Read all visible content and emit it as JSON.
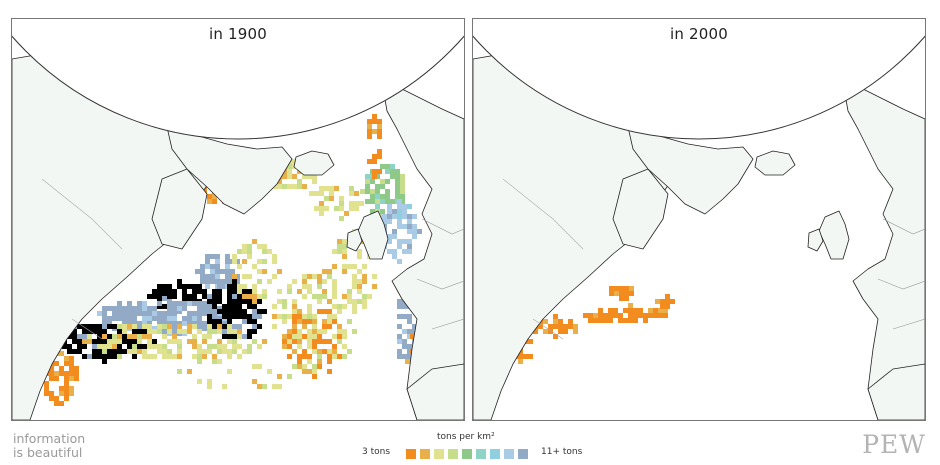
{
  "panels": [
    {
      "title": "in 1900"
    },
    {
      "title": "in 2000"
    }
  ],
  "colors": {
    "land": "#f3f7f3",
    "coast": "#222222",
    "ocean": "#ffffff",
    "arctic": "#ffffff"
  },
  "legend": {
    "title": "tons per km²",
    "min_label": "3 tons",
    "max_label": "11+ tons",
    "scale": [
      {
        "level": 3,
        "color": "#f28c1e"
      },
      {
        "level": 4,
        "color": "#e9b04a"
      },
      {
        "level": 5,
        "color": "#e1e28f"
      },
      {
        "level": 6,
        "color": "#c6dd8a"
      },
      {
        "level": 7,
        "color": "#8fc98a"
      },
      {
        "level": 8,
        "color": "#8fd2c6"
      },
      {
        "level": 9,
        "color": "#8fcfe0"
      },
      {
        "level": 10,
        "color": "#a9cbe6"
      },
      {
        "level": 11,
        "color": "#92aac6"
      }
    ]
  },
  "brand": {
    "line1": "information",
    "line2": "is beautiful"
  },
  "source_logo": "PEW"
}
